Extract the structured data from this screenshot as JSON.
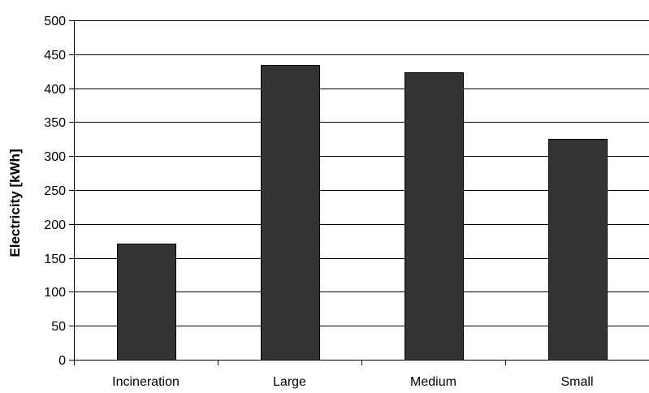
{
  "chart_data": {
    "type": "bar",
    "categories": [
      "Incineration",
      "Large",
      "Medium",
      "Small"
    ],
    "values": [
      171,
      434,
      423,
      325
    ],
    "title": "",
    "xlabel": "",
    "ylabel": "Electricity [kWh]",
    "ylim": [
      0,
      500
    ],
    "yticks": [
      0,
      50,
      100,
      150,
      200,
      250,
      300,
      350,
      400,
      450,
      500
    ],
    "grid": true,
    "legend": "none",
    "bar_color": "#333333",
    "grid_color": "#000000"
  }
}
